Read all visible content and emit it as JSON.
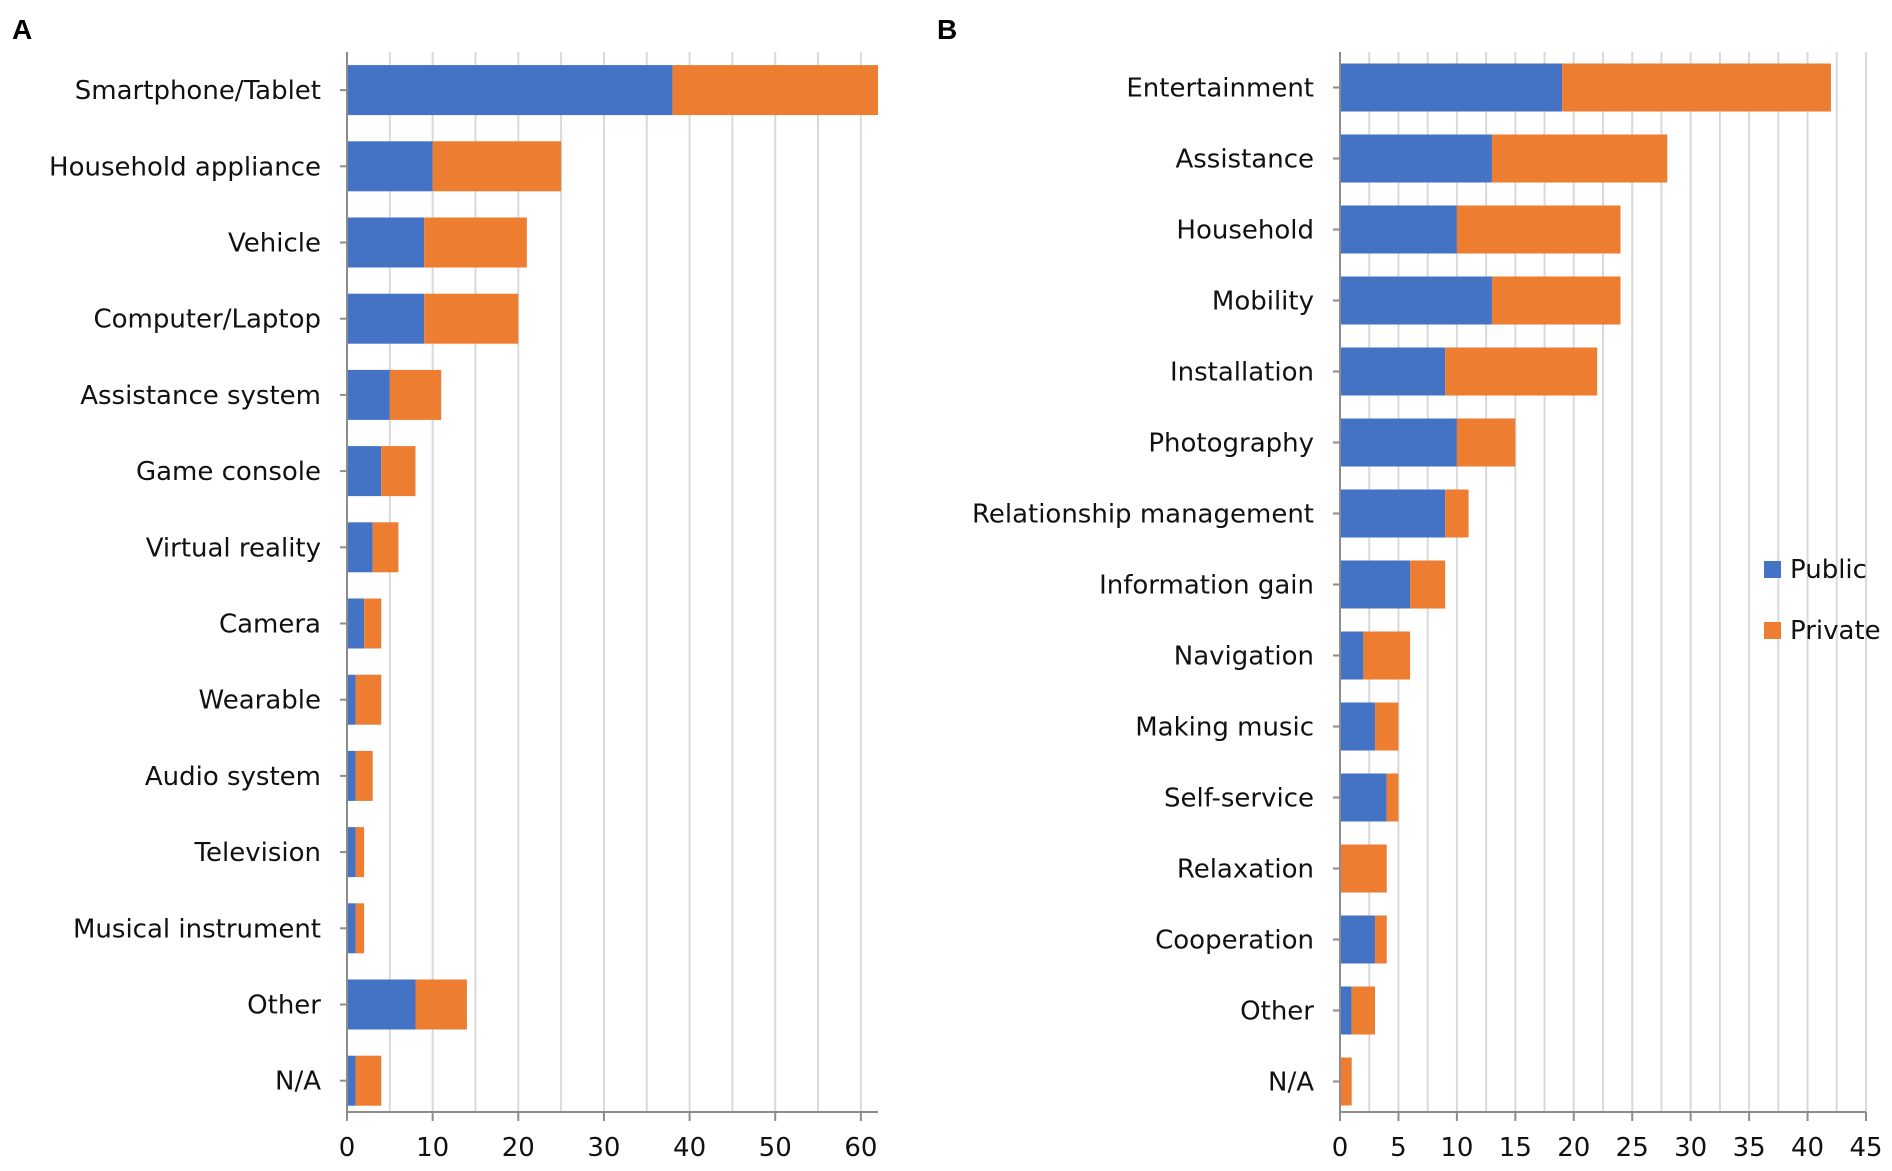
{
  "chart_data": [
    {
      "panel": "A",
      "type": "bar",
      "orientation": "horizontal",
      "stacked": true,
      "categories": [
        "Smartphone/Tablet",
        "Household appliance",
        "Vehicle",
        "Computer/Laptop",
        "Assistance system",
        "Game console",
        "Virtual reality",
        "Camera",
        "Wearable",
        "Audio system",
        "Television",
        "Musical instrument",
        "Other",
        "N/A"
      ],
      "series": [
        {
          "name": "Public",
          "values": [
            38,
            10,
            9,
            9,
            5,
            4,
            3,
            2,
            1,
            1,
            1,
            1,
            8,
            1
          ]
        },
        {
          "name": "Private",
          "values": [
            24,
            15,
            12,
            11,
            6,
            4,
            3,
            2,
            3,
            2,
            1,
            1,
            6,
            3
          ]
        }
      ],
      "xlim": [
        0,
        62
      ],
      "xticks": [
        0,
        10,
        20,
        30,
        40,
        50,
        60
      ],
      "grid_step": 5,
      "grid": true
    },
    {
      "panel": "B",
      "type": "bar",
      "orientation": "horizontal",
      "stacked": true,
      "categories": [
        "Entertainment",
        "Assistance",
        "Household",
        "Mobility",
        "Installation",
        "Photography",
        "Relationship management",
        "Information gain",
        "Navigation",
        "Making music",
        "Self-service",
        "Relaxation",
        "Cooperation",
        "Other",
        "N/A"
      ],
      "series": [
        {
          "name": "Public",
          "values": [
            19,
            13,
            10,
            13,
            9,
            10,
            9,
            6,
            2,
            3,
            4,
            0,
            3,
            1,
            0
          ]
        },
        {
          "name": "Private",
          "values": [
            23,
            15,
            14,
            11,
            13,
            5,
            2,
            3,
            4,
            2,
            1,
            4,
            1,
            2,
            1
          ]
        }
      ],
      "xlim": [
        0,
        45
      ],
      "xticks": [
        0,
        5,
        10,
        15,
        20,
        25,
        30,
        35,
        40,
        45
      ],
      "grid_step": 2.5,
      "grid": true,
      "legend": {
        "placement": "right",
        "entries": [
          "Public",
          "Private"
        ]
      }
    }
  ],
  "colors": {
    "public": "#4472c4",
    "private": "#ed7d31",
    "grid": "#d9d9d9",
    "axis": "#8c8c8c"
  }
}
